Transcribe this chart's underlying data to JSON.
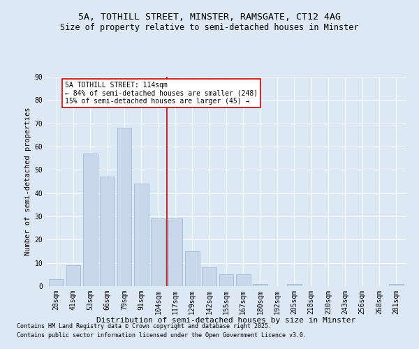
{
  "title1": "5A, TOTHILL STREET, MINSTER, RAMSGATE, CT12 4AG",
  "title2": "Size of property relative to semi-detached houses in Minster",
  "xlabel": "Distribution of semi-detached houses by size in Minster",
  "ylabel": "Number of semi-detached properties",
  "categories": [
    "28sqm",
    "41sqm",
    "53sqm",
    "66sqm",
    "79sqm",
    "91sqm",
    "104sqm",
    "117sqm",
    "129sqm",
    "142sqm",
    "155sqm",
    "167sqm",
    "180sqm",
    "192sqm",
    "205sqm",
    "218sqm",
    "230sqm",
    "243sqm",
    "256sqm",
    "268sqm",
    "281sqm"
  ],
  "values": [
    3,
    9,
    57,
    47,
    68,
    44,
    29,
    29,
    15,
    8,
    5,
    5,
    1,
    0,
    1,
    0,
    0,
    0,
    0,
    0,
    1
  ],
  "bar_color": "#c8d8ea",
  "bar_edge_color": "#a0bcd4",
  "vline_x_index": 7,
  "vline_color": "#cc0000",
  "annotation_title": "5A TOTHILL STREET: 114sqm",
  "annotation_line1": "← 84% of semi-detached houses are smaller (248)",
  "annotation_line2": "15% of semi-detached houses are larger (45) →",
  "annotation_box_color": "#ffffff",
  "annotation_box_edge": "#cc0000",
  "footer1": "Contains HM Land Registry data © Crown copyright and database right 2025.",
  "footer2": "Contains public sector information licensed under the Open Government Licence v3.0.",
  "ylim": [
    0,
    90
  ],
  "yticks": [
    0,
    10,
    20,
    30,
    40,
    50,
    60,
    70,
    80,
    90
  ],
  "bg_color": "#dce9f5",
  "title1_fontsize": 9.5,
  "title2_fontsize": 8.5,
  "xlabel_fontsize": 8,
  "ylabel_fontsize": 7.5,
  "tick_fontsize": 7,
  "annot_fontsize": 7,
  "footer_fontsize": 6
}
